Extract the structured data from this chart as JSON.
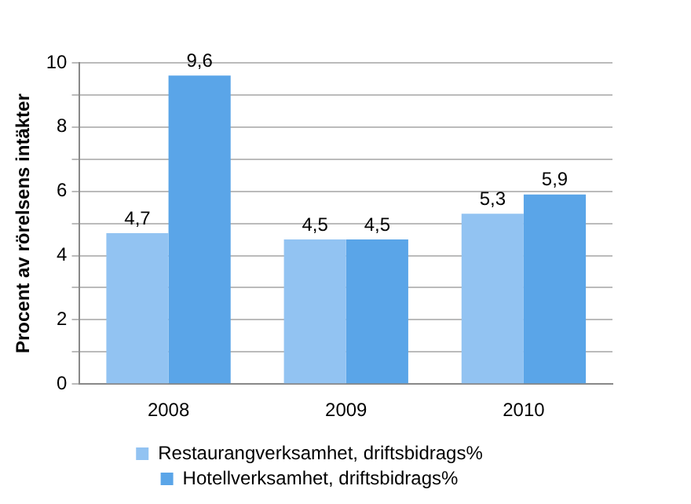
{
  "chart_data": {
    "type": "bar",
    "ylabel": "Procent av rörelsens intäkter",
    "categories": [
      "2008",
      "2009",
      "2010"
    ],
    "series": [
      {
        "name": "Restaurangverksamhet, driftsbidrags%",
        "color": "#92c3f2",
        "values": [
          4.7,
          4.5,
          5.3
        ],
        "value_labels": [
          "4,7",
          "4,5",
          "5,3"
        ]
      },
      {
        "name": "Hotellverksamhet, driftsbidrags%",
        "color": "#5aa5e8",
        "values": [
          9.6,
          4.5,
          5.9
        ],
        "value_labels": [
          "9,6",
          "4,5",
          "5,9"
        ]
      }
    ],
    "ylim": [
      0,
      10
    ],
    "yticks": [
      0,
      {
        "value": 1,
        "label": null
      },
      2,
      {
        "value": 3,
        "label": null
      },
      4,
      {
        "value": 5,
        "label": null
      },
      6,
      {
        "value": 7,
        "label": null
      },
      8,
      {
        "value": 9,
        "label": null
      },
      10
    ],
    "grid": "y",
    "legend": "bottom"
  }
}
